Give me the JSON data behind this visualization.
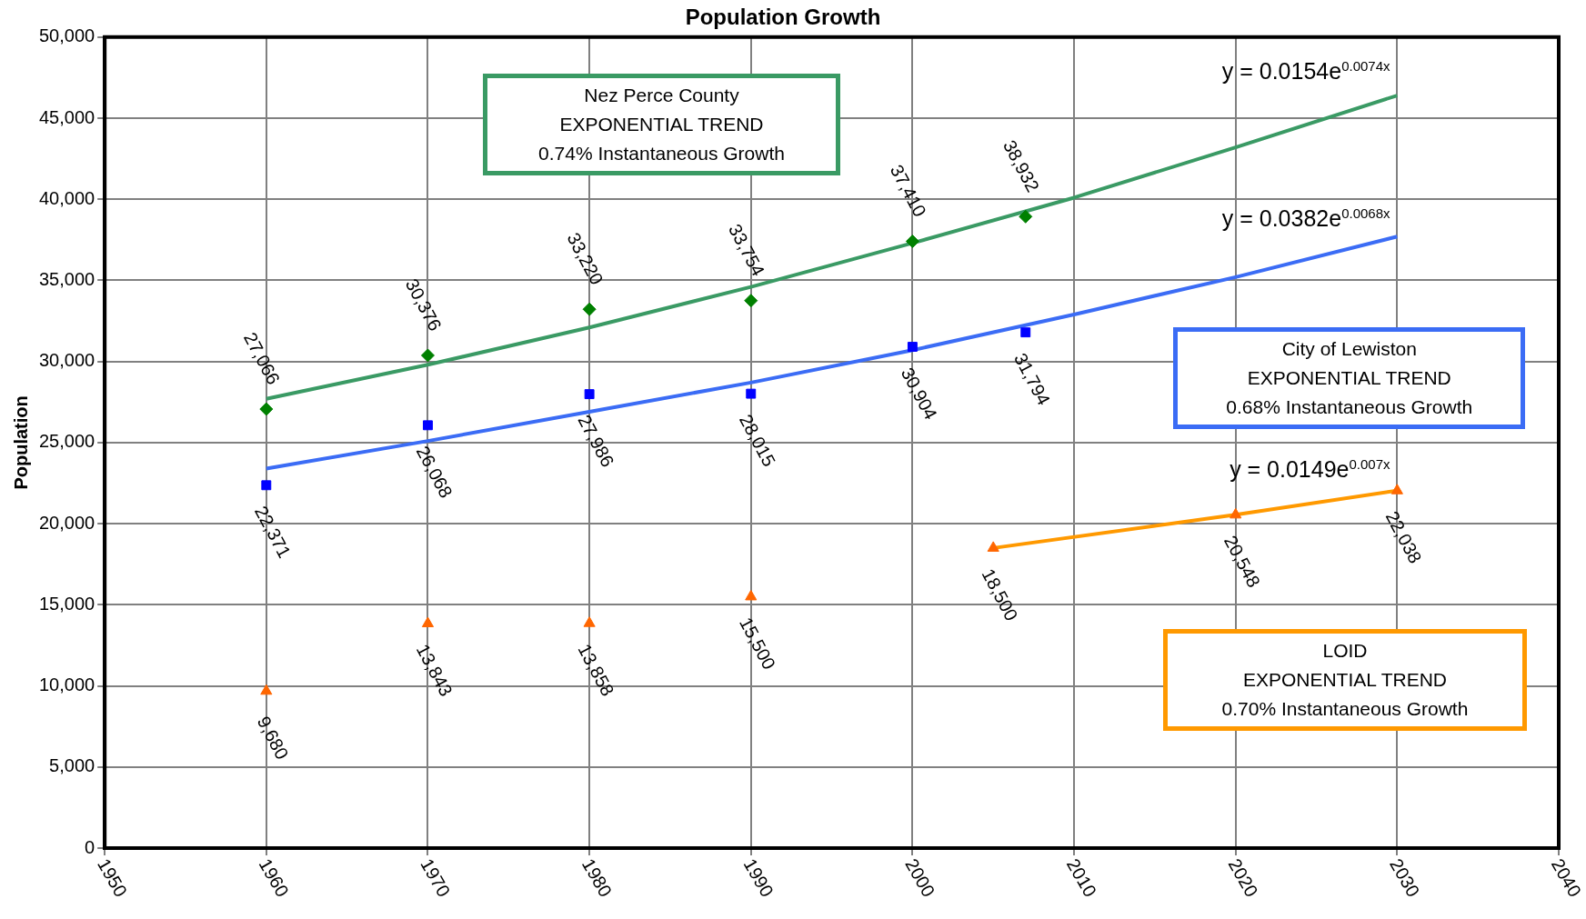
{
  "chart_data": {
    "type": "scatter",
    "title": "Population Growth",
    "ylabel": "Population",
    "xlim": [
      1950,
      2040
    ],
    "xticks": [
      1950,
      1960,
      1970,
      1980,
      1990,
      2000,
      2010,
      2020,
      2030,
      2040
    ],
    "ylim": [
      0,
      50000
    ],
    "yticks": [
      0,
      {
        "value": 5000,
        "label": "5,000"
      },
      {
        "value": 10000,
        "label": "10,000"
      },
      {
        "value": 15000,
        "label": "15,000"
      },
      {
        "value": 20000,
        "label": "20,000"
      },
      {
        "value": 25000,
        "label": "25,000"
      },
      {
        "value": 30000,
        "label": "30,000"
      },
      {
        "value": 35000,
        "label": "35,000"
      },
      {
        "value": 40000,
        "label": "40,000"
      },
      {
        "value": 45000,
        "label": "45,000"
      },
      {
        "value": 50000,
        "label": "50,000"
      }
    ],
    "grid": true,
    "legend": false,
    "series": [
      {
        "type": "scatter",
        "color": "#008000",
        "marker": "diamond",
        "x": [
          1960,
          1970,
          1980,
          1990,
          2000,
          2007
        ],
        "values": [
          27066,
          30376,
          33220,
          33754,
          37410,
          38932
        ],
        "value_labels": [
          "27,066",
          "30,376",
          "33,220",
          "33,754",
          "37,410",
          "38,932"
        ]
      },
      {
        "type": "scatter",
        "color": "#0000ff",
        "marker": "square",
        "x": [
          1960,
          1970,
          1980,
          1990,
          2000,
          2007
        ],
        "values": [
          22371,
          26068,
          27986,
          28015,
          30904,
          31794
        ],
        "value_labels": [
          "22,371",
          "26,068",
          "27,986",
          "28,015",
          "30,904",
          "31,794"
        ]
      },
      {
        "type": "scatter",
        "color": "#ff6600",
        "marker": "triangle",
        "x": [
          1960,
          1970,
          1980,
          1990,
          2005,
          2020,
          2030
        ],
        "values": [
          9680,
          13843,
          13858,
          15500,
          18500,
          20548,
          22038
        ],
        "value_labels": [
          "9,680",
          "13,843",
          "13,858",
          "15,500",
          "18,500",
          "20,548",
          "22,038"
        ]
      },
      {
        "type": "line",
        "color": "#3a9a64",
        "marker": "none",
        "x": [
          1960,
          1970,
          1980,
          1990,
          2000,
          2010,
          2020,
          2030
        ],
        "values": [
          27700,
          29800,
          32100,
          34600,
          37300,
          40100,
          43200,
          46400
        ]
      },
      {
        "type": "line",
        "color": "#3b6cf5",
        "marker": "none",
        "x": [
          1960,
          1970,
          1980,
          1990,
          2000,
          2010,
          2020,
          2030
        ],
        "values": [
          23400,
          25100,
          26900,
          28700,
          30700,
          32900,
          35200,
          37700
        ]
      },
      {
        "type": "line",
        "color": "#ff9900",
        "marker": "none",
        "x": [
          2005,
          2020,
          2030
        ],
        "values": [
          18500,
          20548,
          22038
        ]
      }
    ],
    "annotations": [
      "Nez Perce County\nEXPONENTIAL TREND\n0.74% Instantaneous Growth",
      "City of Lewiston\nEXPONENTIAL TREND\n0.68% Instantaneous Growth",
      "LOID\nEXPONENTIAL TREND\n0.70% Instantaneous Growth",
      "y = 0.0154e$^{0.0074x}$",
      "y = 0.0382e$^{0.0068x}$",
      "y = 0.0149e$^{0.007x}$"
    ]
  }
}
